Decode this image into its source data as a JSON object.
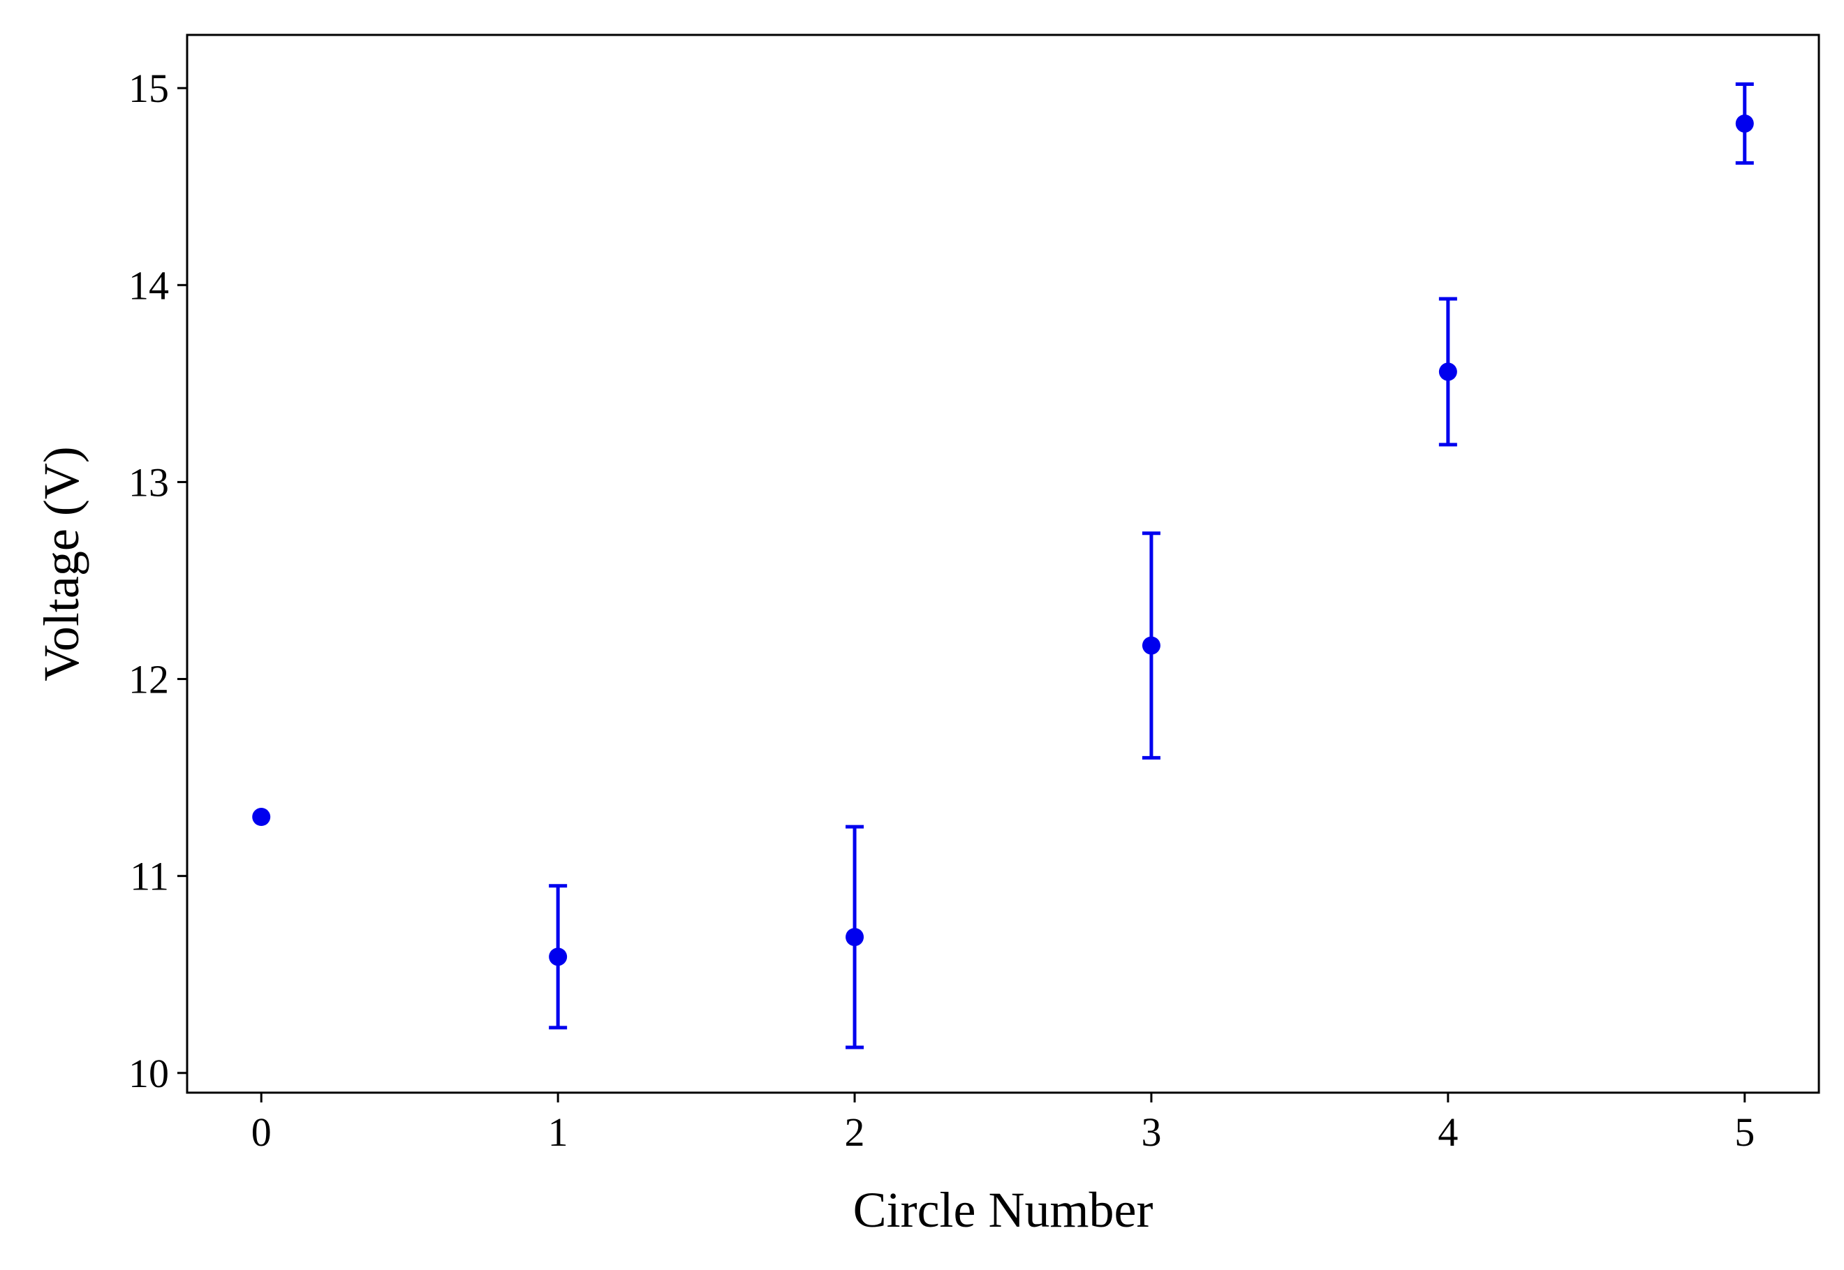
{
  "chart_data": {
    "type": "scatter",
    "title": "",
    "xlabel": "Circle Number",
    "ylabel": "Voltage (V)",
    "xlim": [
      -0.25,
      5.25
    ],
    "ylim": [
      9.9,
      15.27
    ],
    "xticks": [
      0,
      1,
      2,
      3,
      4,
      5
    ],
    "yticks": [
      10,
      11,
      12,
      13,
      14,
      15
    ],
    "grid": false,
    "legend": "none",
    "color": "#0000ee",
    "series": [
      {
        "x": [
          0,
          1,
          2,
          3,
          4,
          5
        ],
        "y": [
          11.3,
          10.59,
          10.69,
          12.17,
          13.56,
          14.82
        ],
        "yerr_low": [
          11.3,
          10.23,
          10.13,
          11.6,
          13.19,
          14.62
        ],
        "yerr_high": [
          11.3,
          10.95,
          11.25,
          12.74,
          13.93,
          15.02
        ]
      }
    ]
  }
}
